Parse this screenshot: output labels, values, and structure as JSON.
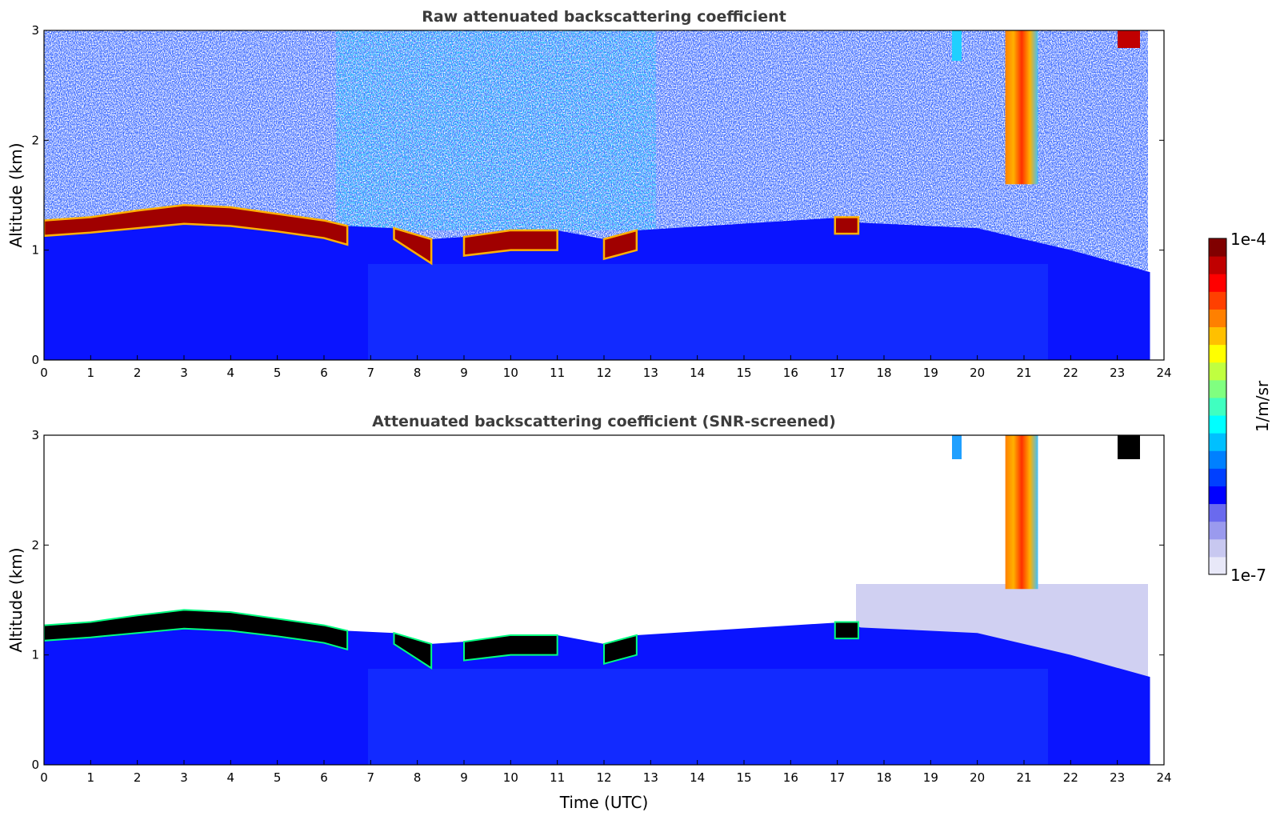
{
  "chart_data": [
    {
      "type": "heatmap",
      "title": "Raw attenuated backscattering coefficient",
      "xlabel": "",
      "ylabel": "Altitude (km)",
      "xlim": [
        0,
        24
      ],
      "ylim": [
        0,
        3
      ],
      "x_ticks": [
        "0",
        "1",
        "2",
        "3",
        "4",
        "5",
        "6",
        "7",
        "8",
        "9",
        "10",
        "11",
        "12",
        "13",
        "14",
        "15",
        "16",
        "17",
        "18",
        "19",
        "20",
        "21",
        "22",
        "23",
        "24"
      ],
      "y_ticks": [
        "0",
        "1",
        "2",
        "3"
      ],
      "data_end_time": 23.7,
      "cloud_base_km": [
        {
          "t": 0,
          "base": 1.13,
          "top": 1.27
        },
        {
          "t": 1,
          "base": 1.16,
          "top": 1.3
        },
        {
          "t": 2,
          "base": 1.2,
          "top": 1.36
        },
        {
          "t": 3,
          "base": 1.24,
          "top": 1.41
        },
        {
          "t": 4,
          "base": 1.22,
          "top": 1.39
        },
        {
          "t": 5,
          "base": 1.17,
          "top": 1.33
        },
        {
          "t": 6,
          "base": 1.11,
          "top": 1.27
        },
        {
          "t": 6.5,
          "base": 1.05,
          "top": 1.22
        },
        {
          "t": 7.5,
          "base": 1.1,
          "top": 1.2
        },
        {
          "t": 8.3,
          "base": 0.88,
          "top": 1.1
        },
        {
          "t": 9,
          "base": 0.95,
          "top": 1.12
        },
        {
          "t": 10,
          "base": 1.0,
          "top": 1.18
        },
        {
          "t": 11,
          "base": 1.0,
          "top": 1.18
        },
        {
          "t": 12,
          "base": 0.92,
          "top": 1.1
        },
        {
          "t": 12.7,
          "base": 1.0,
          "top": 1.18
        },
        {
          "t": 17.2,
          "base": 1.15,
          "top": 1.3
        }
      ],
      "precip_shaft": {
        "t_start": 20.6,
        "t_end": 21.3,
        "bottom_km": 1.6
      }
    },
    {
      "type": "heatmap",
      "title": "Attenuated backscattering coefficient (SNR-screened)",
      "xlabel": "Time (UTC)",
      "ylabel": "Altitude (km)",
      "xlim": [
        0,
        24
      ],
      "ylim": [
        0,
        3
      ],
      "x_ticks": [
        "0",
        "1",
        "2",
        "3",
        "4",
        "5",
        "6",
        "7",
        "8",
        "9",
        "10",
        "11",
        "12",
        "13",
        "14",
        "15",
        "16",
        "17",
        "18",
        "19",
        "20",
        "21",
        "22",
        "23",
        "24"
      ],
      "y_ticks": [
        "0",
        "1",
        "2",
        "3"
      ],
      "data_end_time": 23.7
    }
  ],
  "colorbar": {
    "max_label": "1e-4",
    "min_label": "1e-7",
    "label": "1/m/sr",
    "colors": [
      "#e8e8f8",
      "#c8c8f0",
      "#9a9aee",
      "#6a6aee",
      "#0000ff",
      "#0040ff",
      "#0080ff",
      "#00c0ff",
      "#00ffff",
      "#40ffc0",
      "#80ff80",
      "#c0ff40",
      "#ffff00",
      "#ffc000",
      "#ff8000",
      "#ff4000",
      "#ff0000",
      "#c00000",
      "#800000"
    ]
  }
}
